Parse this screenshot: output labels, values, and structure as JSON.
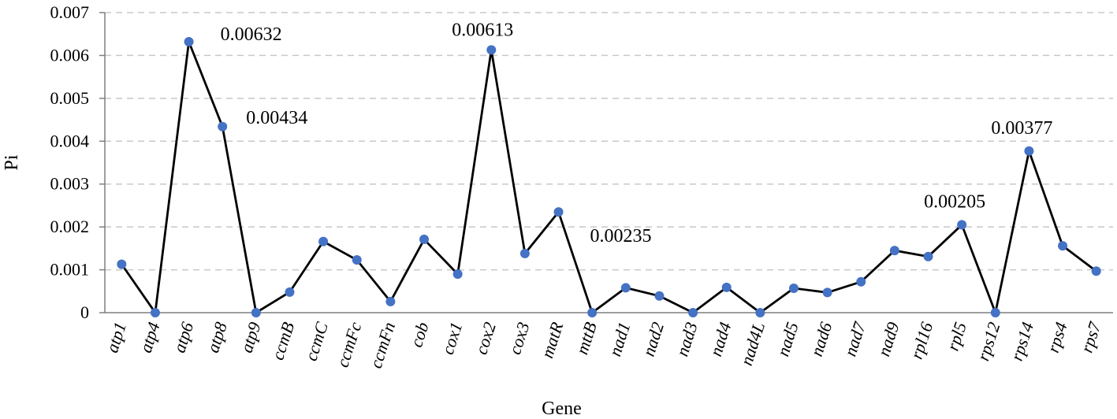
{
  "chart_data": {
    "type": "line",
    "categories": [
      "atp1",
      "atp4",
      "atp6",
      "atp8",
      "atp9",
      "ccmB",
      "ccmC",
      "ccmFc",
      "ccmFn",
      "cob",
      "cox1",
      "cox2",
      "cox3",
      "matR",
      "mttB",
      "nad1",
      "nad2",
      "nad3",
      "nad4",
      "nad4L",
      "nad5",
      "nad6",
      "nad7",
      "nad9",
      "rpl16",
      "rpl5",
      "rps12",
      "rps14",
      "rps4",
      "rps7"
    ],
    "series": [
      {
        "values": [
          0.00113,
          0,
          0.00632,
          0.00434,
          0,
          0.00048,
          0.00166,
          0.00123,
          0.00026,
          0.00171,
          0.0009,
          0.00613,
          0.00138,
          0.00235,
          0,
          0.00058,
          0.00039,
          0,
          0.00059,
          0,
          0.00057,
          0.00047,
          0.00072,
          0.00145,
          0.00131,
          0.00205,
          0,
          0.00377,
          0.00156,
          0.00097
        ],
        "color": "#000000",
        "marker_color": "#4472C4"
      }
    ],
    "xlabel": "Gene",
    "ylabel": "Pi",
    "ylim": [
      0,
      0.007
    ],
    "yticks": [
      "0",
      "0.001",
      "0.002",
      "0.003",
      "0.004",
      "0.005",
      "0.006",
      "0.007"
    ],
    "grid": "horizontal-dashed",
    "annotations": [
      {
        "category": "atp6",
        "text": "0.00632"
      },
      {
        "category": "atp8",
        "text": "0.00434"
      },
      {
        "category": "cox2",
        "text": "0.00613"
      },
      {
        "category": "matR",
        "text": "0.00235"
      },
      {
        "category": "rpl5",
        "text": "0.00205"
      },
      {
        "category": "rps14",
        "text": "0.00377"
      }
    ]
  }
}
